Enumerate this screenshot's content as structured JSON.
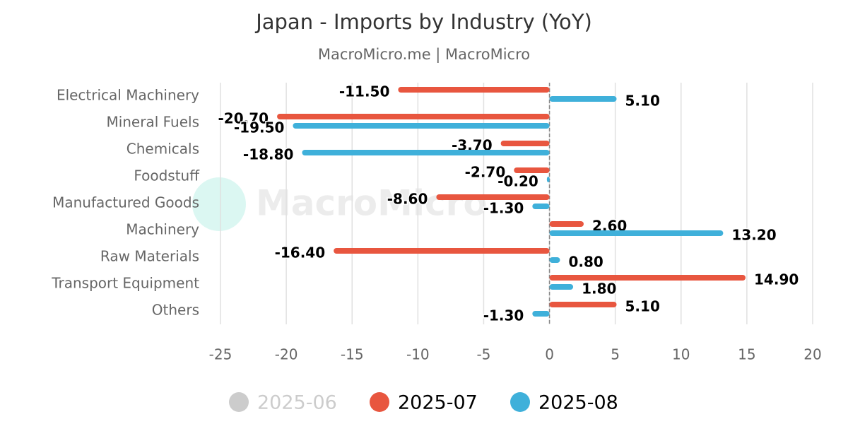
{
  "chart_data": {
    "type": "hbar",
    "title": "Japan - Imports by Industry (YoY)",
    "subtitle": "MacroMicro.me | MacroMicro",
    "watermark": "MacroMicro",
    "categories": [
      "Electrical Machinery",
      "Mineral Fuels",
      "Chemicals",
      "Foodstuff",
      "Manufactured Goods",
      "Machinery",
      "Raw Materials",
      "Transport Equipment",
      "Others"
    ],
    "series": [
      {
        "name": "2025-06",
        "color": "#cccccc",
        "visible": false,
        "values": [
          null,
          null,
          null,
          null,
          null,
          null,
          null,
          null,
          null
        ]
      },
      {
        "name": "2025-07",
        "color": "#e8563f",
        "visible": true,
        "values": [
          -11.5,
          -20.7,
          -3.7,
          -2.7,
          -8.6,
          2.6,
          -16.4,
          14.9,
          5.1
        ],
        "value_labels": [
          "-11.50",
          "-20.70",
          "-3.70",
          "-2.70",
          "-8.60",
          "2.60",
          "-16.40",
          "14.90",
          "5.10"
        ]
      },
      {
        "name": "2025-08",
        "color": "#3fb0da",
        "visible": true,
        "values": [
          5.1,
          -19.5,
          -18.8,
          -0.2,
          -1.3,
          13.2,
          0.8,
          1.8,
          -1.3
        ],
        "value_labels": [
          "5.10",
          "-19.50",
          "-18.80",
          "-0.20",
          "-1.30",
          "13.20",
          "0.80",
          "1.80",
          "-1.30"
        ]
      }
    ],
    "xlim": [
      -25,
      20
    ],
    "xticks": [
      -25,
      -20,
      -15,
      -10,
      -5,
      0,
      5,
      10,
      15,
      20
    ],
    "grid": true
  }
}
